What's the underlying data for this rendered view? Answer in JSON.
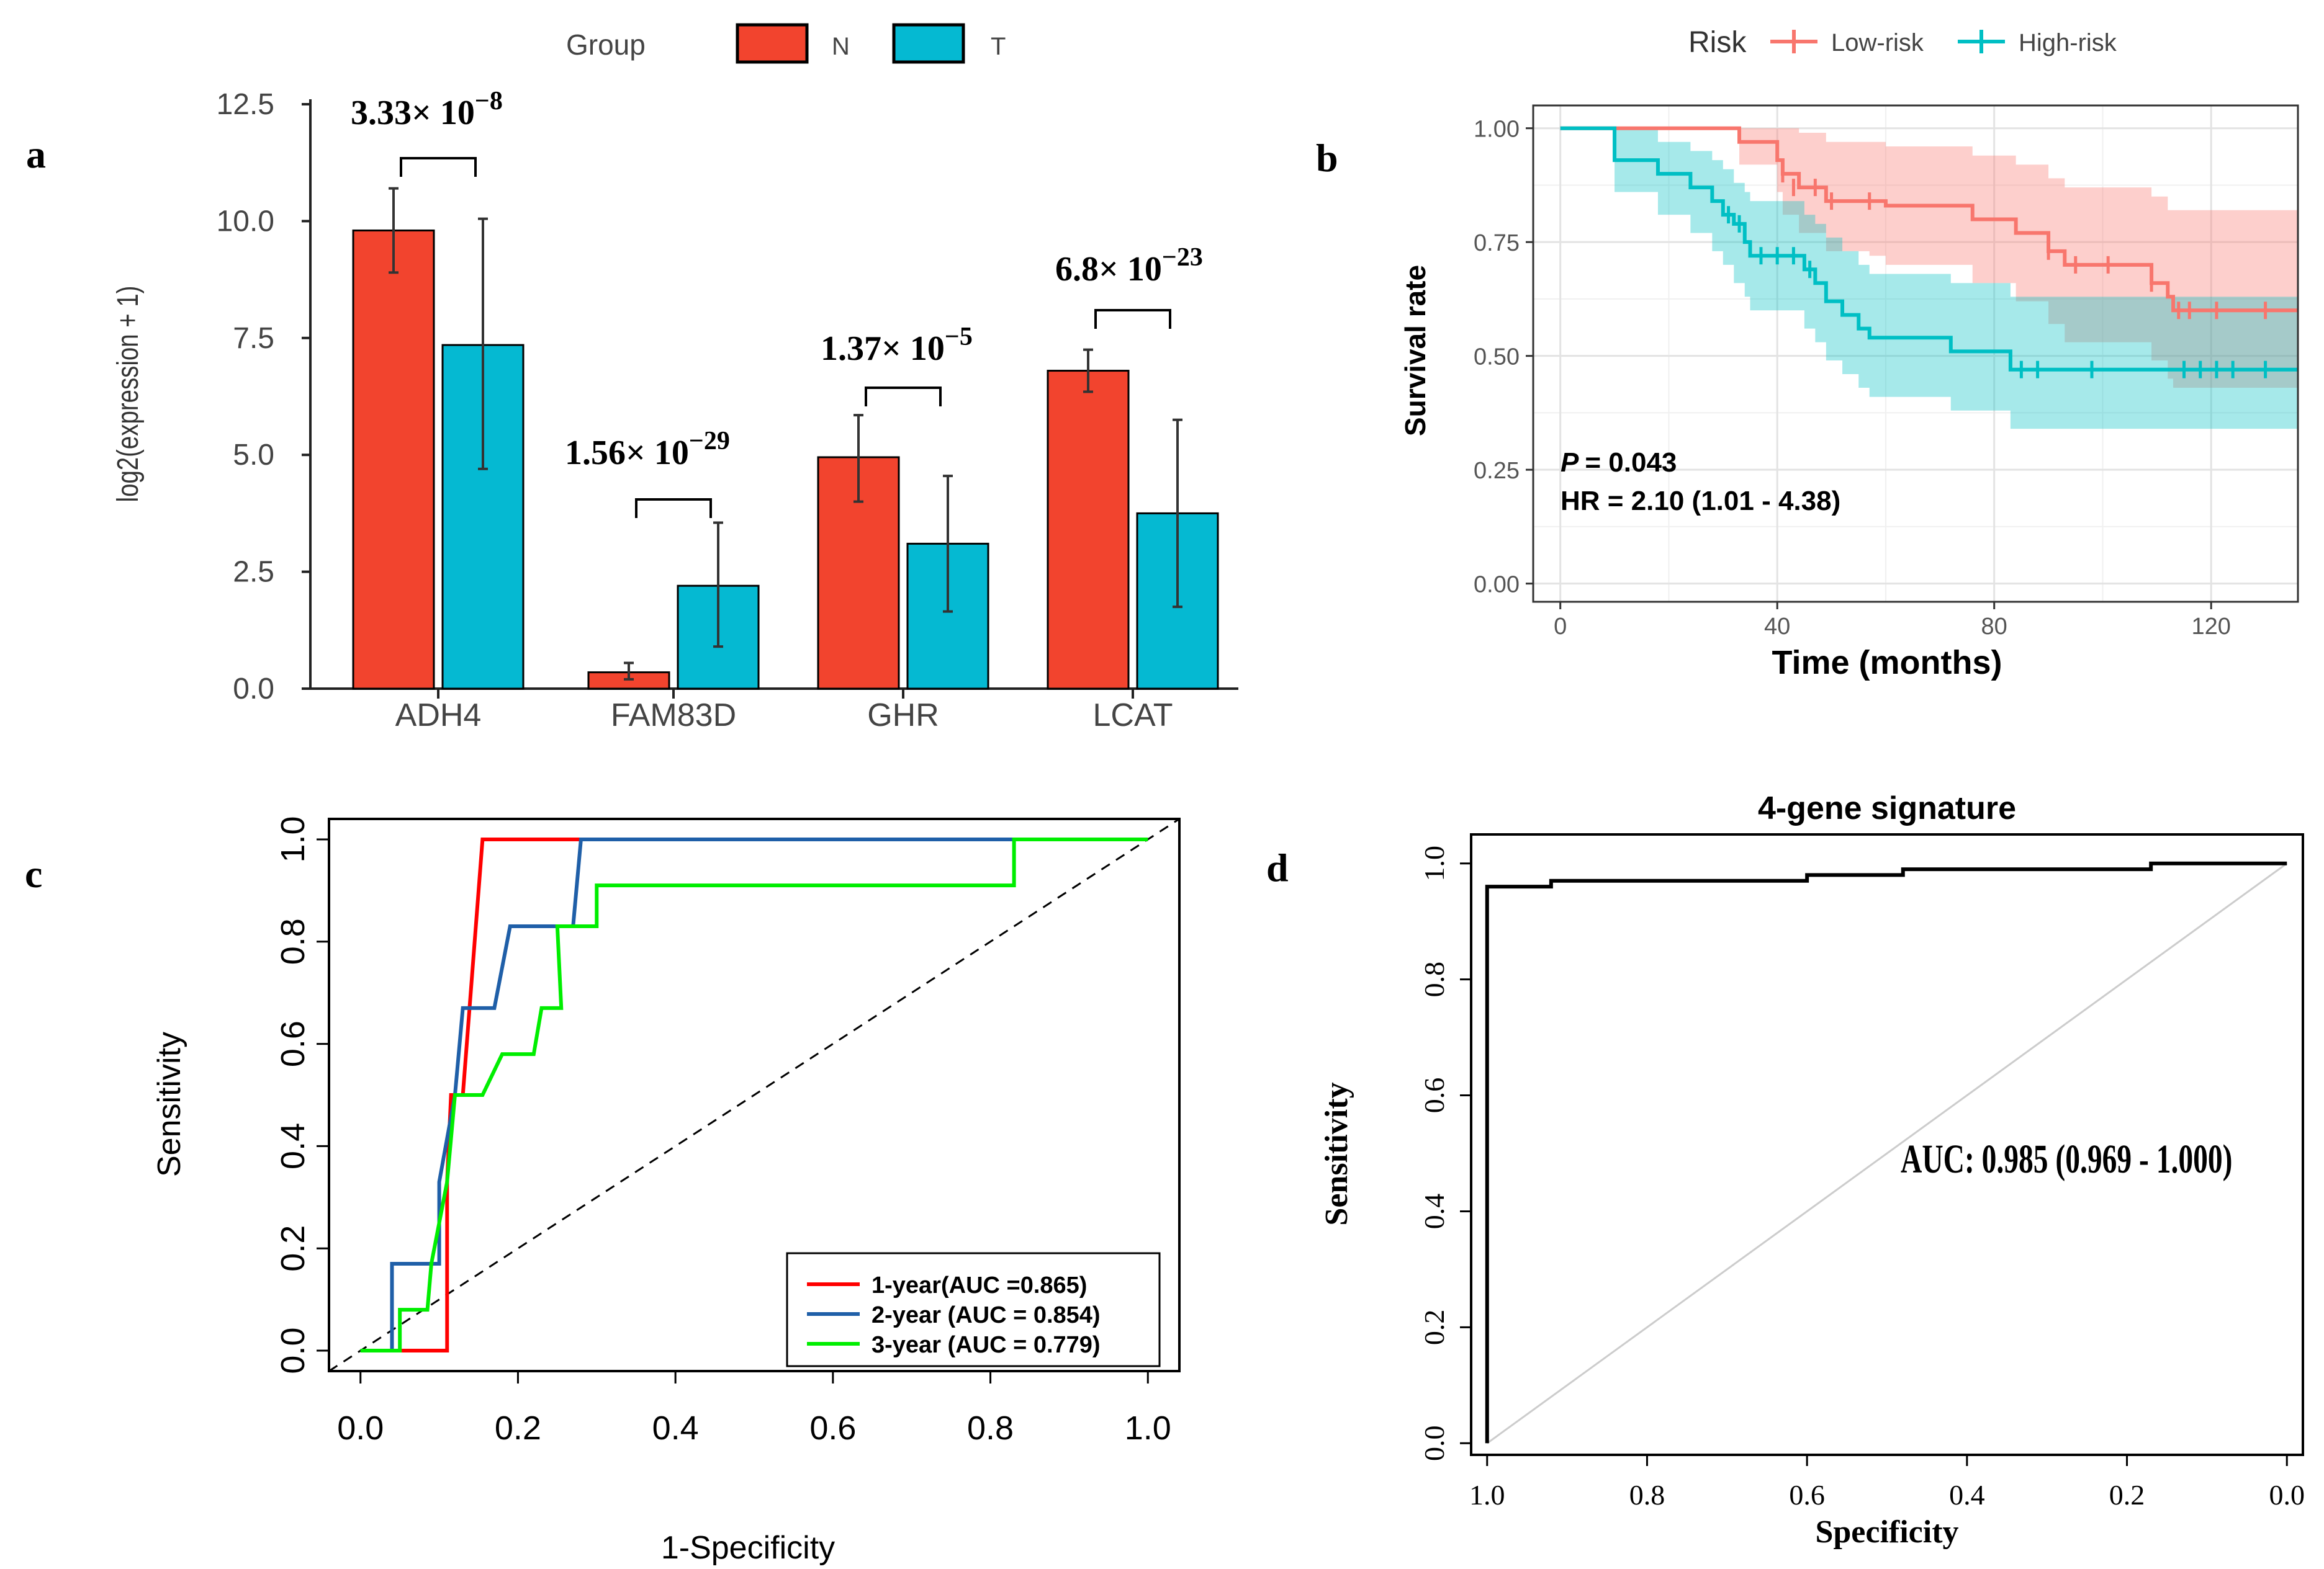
{
  "panel_labels": {
    "a": "a",
    "b": "b",
    "c": "c",
    "d": "d"
  },
  "chart_data": [
    {
      "id": "a",
      "type": "bar",
      "legend_title": "Group",
      "legend_placement": "top",
      "series": [
        {
          "name": "N",
          "color": "#f2442e",
          "values": [
            9.8,
            0.35,
            4.95,
            6.8
          ],
          "err_low": [
            8.9,
            0.2,
            4.0,
            6.35
          ],
          "err_high": [
            10.7,
            0.55,
            5.85,
            7.25
          ]
        },
        {
          "name": "T",
          "color": "#05b9d2",
          "values": [
            7.35,
            2.2,
            3.1,
            3.75
          ],
          "err_low": [
            4.7,
            0.9,
            1.65,
            1.75
          ],
          "err_high": [
            10.05,
            3.55,
            4.55,
            5.75
          ]
        }
      ],
      "categories": [
        "ADH4",
        "FAM83D",
        "GHR",
        "LCAT"
      ],
      "ylabel": "log2(expression + 1)",
      "ylim": [
        0,
        12.5
      ],
      "yticks": [
        0.0,
        2.5,
        5.0,
        7.5,
        10.0,
        12.5
      ],
      "ytick_labels": [
        "0.0",
        "2.5",
        "5.0",
        "7.5",
        "10.0",
        "12.5"
      ],
      "pvalues": [
        {
          "mantissa": "3.33",
          "exp": "−8"
        },
        {
          "mantissa": "1.56",
          "exp": "−29"
        },
        {
          "mantissa": "1.37",
          "exp": "−5"
        },
        {
          "mantissa": "6.8",
          "exp": "−23"
        }
      ],
      "times_sign": "× 10"
    },
    {
      "id": "b",
      "type": "line",
      "subtype": "kaplan-meier",
      "legend_title": "Risk",
      "legend_placement": "top",
      "xlabel": "Time (months)",
      "ylabel": "Survival rate",
      "xlim": [
        -5,
        136
      ],
      "ylim": [
        -0.04,
        1.05
      ],
      "xticks": [
        0,
        40,
        80,
        120
      ],
      "xtick_labels": [
        "0",
        "40",
        "80",
        "120"
      ],
      "yticks": [
        0,
        0.25,
        0.5,
        0.75,
        1.0
      ],
      "ytick_labels": [
        "0.00",
        "0.25",
        "0.50",
        "0.75",
        "1.00"
      ],
      "series": [
        {
          "name": "Low-risk",
          "color": "#f8766d",
          "band_color": "#f8766d",
          "steps": [
            [
              0,
              1.0
            ],
            [
              31,
              1.0
            ],
            [
              33,
              0.97
            ],
            [
              38,
              0.97
            ],
            [
              40,
              0.93
            ],
            [
              41,
              0.9
            ],
            [
              44,
              0.87
            ],
            [
              49,
              0.84
            ],
            [
              57,
              0.84
            ],
            [
              60,
              0.83
            ],
            [
              74,
              0.83
            ],
            [
              76,
              0.8
            ],
            [
              84,
              0.77
            ],
            [
              88,
              0.77
            ],
            [
              90,
              0.73
            ],
            [
              93,
              0.7
            ],
            [
              107,
              0.7
            ],
            [
              109,
              0.66
            ],
            [
              112,
              0.63
            ],
            [
              113,
              0.6
            ],
            [
              136,
              0.6
            ]
          ],
          "lower": [
            [
              0,
              1.0
            ],
            [
              31,
              1.0
            ],
            [
              33,
              0.92
            ],
            [
              38,
              0.92
            ],
            [
              40,
              0.86
            ],
            [
              41,
              0.81
            ],
            [
              44,
              0.77
            ],
            [
              49,
              0.73
            ],
            [
              57,
              0.72
            ],
            [
              60,
              0.7
            ],
            [
              74,
              0.7
            ],
            [
              76,
              0.66
            ],
            [
              84,
              0.62
            ],
            [
              88,
              0.62
            ],
            [
              90,
              0.57
            ],
            [
              93,
              0.53
            ],
            [
              107,
              0.53
            ],
            [
              109,
              0.49
            ],
            [
              112,
              0.45
            ],
            [
              113,
              0.43
            ],
            [
              136,
              0.43
            ]
          ],
          "upper": [
            [
              0,
              1.0
            ],
            [
              31,
              1.0
            ],
            [
              33,
              1.0
            ],
            [
              40,
              1.0
            ],
            [
              44,
              0.99
            ],
            [
              49,
              0.97
            ],
            [
              57,
              0.97
            ],
            [
              60,
              0.96
            ],
            [
              74,
              0.96
            ],
            [
              76,
              0.94
            ],
            [
              84,
              0.92
            ],
            [
              90,
              0.89
            ],
            [
              93,
              0.87
            ],
            [
              107,
              0.87
            ],
            [
              109,
              0.85
            ],
            [
              112,
              0.82
            ],
            [
              113,
              0.82
            ],
            [
              136,
              0.82
            ]
          ],
          "censors": [
            [
              41,
              0.9
            ],
            [
              43,
              0.87
            ],
            [
              47,
              0.87
            ],
            [
              50,
              0.84
            ],
            [
              57,
              0.84
            ],
            [
              90,
              0.73
            ],
            [
              95,
              0.7
            ],
            [
              101,
              0.7
            ],
            [
              109,
              0.66
            ],
            [
              114,
              0.6
            ],
            [
              116,
              0.6
            ],
            [
              121,
              0.6
            ],
            [
              130,
              0.6
            ]
          ]
        },
        {
          "name": "High-risk",
          "color": "#00bfc4",
          "band_color": "#00bfc4",
          "steps": [
            [
              0,
              1.0
            ],
            [
              10,
              1.0
            ],
            [
              10,
              0.93
            ],
            [
              17,
              0.93
            ],
            [
              18,
              0.9
            ],
            [
              24,
              0.87
            ],
            [
              28,
              0.84
            ],
            [
              30,
              0.81
            ],
            [
              32,
              0.79
            ],
            [
              34,
              0.75
            ],
            [
              35,
              0.72
            ],
            [
              44,
              0.72
            ],
            [
              45,
              0.69
            ],
            [
              47,
              0.66
            ],
            [
              49,
              0.62
            ],
            [
              52,
              0.59
            ],
            [
              55,
              0.56
            ],
            [
              57,
              0.54
            ],
            [
              70,
              0.54
            ],
            [
              72,
              0.51
            ],
            [
              81,
              0.51
            ],
            [
              83,
              0.47
            ],
            [
              136,
              0.47
            ]
          ],
          "lower": [
            [
              0,
              1.0
            ],
            [
              10,
              1.0
            ],
            [
              10,
              0.86
            ],
            [
              17,
              0.86
            ],
            [
              18,
              0.81
            ],
            [
              24,
              0.77
            ],
            [
              28,
              0.73
            ],
            [
              30,
              0.7
            ],
            [
              32,
              0.66
            ],
            [
              34,
              0.63
            ],
            [
              35,
              0.6
            ],
            [
              44,
              0.6
            ],
            [
              45,
              0.56
            ],
            [
              47,
              0.53
            ],
            [
              49,
              0.49
            ],
            [
              52,
              0.46
            ],
            [
              55,
              0.43
            ],
            [
              57,
              0.41
            ],
            [
              70,
              0.41
            ],
            [
              72,
              0.38
            ],
            [
              81,
              0.38
            ],
            [
              83,
              0.34
            ],
            [
              136,
              0.34
            ]
          ],
          "upper": [
            [
              0,
              1.0
            ],
            [
              10,
              1.0
            ],
            [
              17,
              1.0
            ],
            [
              18,
              0.97
            ],
            [
              24,
              0.95
            ],
            [
              28,
              0.93
            ],
            [
              30,
              0.91
            ],
            [
              32,
              0.88
            ],
            [
              34,
              0.86
            ],
            [
              35,
              0.84
            ],
            [
              44,
              0.84
            ],
            [
              45,
              0.81
            ],
            [
              47,
              0.79
            ],
            [
              49,
              0.76
            ],
            [
              52,
              0.73
            ],
            [
              55,
              0.7
            ],
            [
              57,
              0.68
            ],
            [
              70,
              0.68
            ],
            [
              72,
              0.66
            ],
            [
              81,
              0.66
            ],
            [
              83,
              0.63
            ],
            [
              136,
              0.63
            ]
          ],
          "censors": [
            [
              31,
              0.81
            ],
            [
              33,
              0.79
            ],
            [
              37,
              0.72
            ],
            [
              40,
              0.72
            ],
            [
              43,
              0.72
            ],
            [
              46,
              0.69
            ],
            [
              85,
              0.47
            ],
            [
              88,
              0.47
            ],
            [
              98,
              0.47
            ],
            [
              115,
              0.47
            ],
            [
              118,
              0.47
            ],
            [
              121,
              0.47
            ],
            [
              124,
              0.47
            ],
            [
              130,
              0.47
            ]
          ]
        }
      ],
      "annotation": {
        "p_label": "P",
        "p_value": "= 0.043",
        "hr": "HR = 2.10 (1.01 - 4.38)"
      }
    },
    {
      "id": "c",
      "type": "line",
      "subtype": "roc",
      "xlabel": "1-Specificity",
      "ylabel": "Sensitivity",
      "xlim": [
        -0.04,
        1.04
      ],
      "ylim": [
        -0.04,
        1.04
      ],
      "xticks": [
        0,
        0.2,
        0.4,
        0.6,
        0.8,
        1.0
      ],
      "xtick_labels": [
        "0.0",
        "0.2",
        "0.4",
        "0.6",
        "0.8",
        "1.0"
      ],
      "yticks": [
        0,
        0.2,
        0.4,
        0.6,
        0.8,
        1.0
      ],
      "ytick_labels": [
        "0.0",
        "0.2",
        "0.4",
        "0.6",
        "0.8",
        "1.0"
      ],
      "legend_placement": "bottom-right",
      "series": [
        {
          "name": "1-year(AUC =0.865)",
          "color": "#ff0000",
          "points": [
            [
              0,
              0
            ],
            [
              0.05,
              0
            ],
            [
              0.11,
              0
            ],
            [
              0.11,
              0.33
            ],
            [
              0.115,
              0.5
            ],
            [
              0.13,
              0.5
            ],
            [
              0.155,
              1.0
            ],
            [
              1.0,
              1.0
            ]
          ]
        },
        {
          "name": "2-year (AUC = 0.854)",
          "color": "#1f5fa8",
          "points": [
            [
              0,
              0
            ],
            [
              0.04,
              0
            ],
            [
              0.04,
              0.17
            ],
            [
              0.1,
              0.17
            ],
            [
              0.1,
              0.33
            ],
            [
              0.12,
              0.5
            ],
            [
              0.13,
              0.67
            ],
            [
              0.17,
              0.67
            ],
            [
              0.19,
              0.83
            ],
            [
              0.27,
              0.83
            ],
            [
              0.28,
              1.0
            ],
            [
              1.0,
              1.0
            ]
          ]
        },
        {
          "name": "3-year (AUC = 0.779)",
          "color": "#00ee00",
          "points": [
            [
              0,
              0
            ],
            [
              0.05,
              0
            ],
            [
              0.05,
              0.08
            ],
            [
              0.085,
              0.08
            ],
            [
              0.09,
              0.17
            ],
            [
              0.1,
              0.25
            ],
            [
              0.11,
              0.33
            ],
            [
              0.12,
              0.5
            ],
            [
              0.155,
              0.5
            ],
            [
              0.18,
              0.58
            ],
            [
              0.22,
              0.58
            ],
            [
              0.23,
              0.67
            ],
            [
              0.255,
              0.67
            ],
            [
              0.25,
              0.83
            ],
            [
              0.3,
              0.83
            ],
            [
              0.3,
              0.91
            ],
            [
              0.83,
              0.91
            ],
            [
              0.83,
              1.0
            ],
            [
              1.0,
              1.0
            ]
          ]
        }
      ]
    },
    {
      "id": "d",
      "type": "line",
      "subtype": "roc",
      "title": "4-gene signature",
      "xlabel": "Specificity",
      "ylabel": "Sensitivity",
      "xlim": [
        1.02,
        -0.02
      ],
      "ylim": [
        -0.02,
        1.05
      ],
      "xticks": [
        1.0,
        0.8,
        0.6,
        0.4,
        0.2,
        0.0
      ],
      "xtick_labels": [
        "1.0",
        "0.8",
        "0.6",
        "0.4",
        "0.2",
        "0.0"
      ],
      "yticks": [
        0,
        0.2,
        0.4,
        0.6,
        0.8,
        1.0
      ],
      "ytick_labels": [
        "0.0",
        "0.2",
        "0.4",
        "0.6",
        "0.8",
        "1.0"
      ],
      "series": [
        {
          "name": "4-gene signature",
          "color": "#000000",
          "points": [
            [
              1.0,
              0
            ],
            [
              1.0,
              0.96
            ],
            [
              0.92,
              0.96
            ],
            [
              0.92,
              0.97
            ],
            [
              0.6,
              0.97
            ],
            [
              0.6,
              0.98
            ],
            [
              0.48,
              0.98
            ],
            [
              0.48,
              0.99
            ],
            [
              0.17,
              0.99
            ],
            [
              0.17,
              1.0
            ],
            [
              0.0,
              1.0
            ]
          ]
        }
      ],
      "annotation": "AUC: 0.985 (0.969 - 1.000)"
    }
  ]
}
